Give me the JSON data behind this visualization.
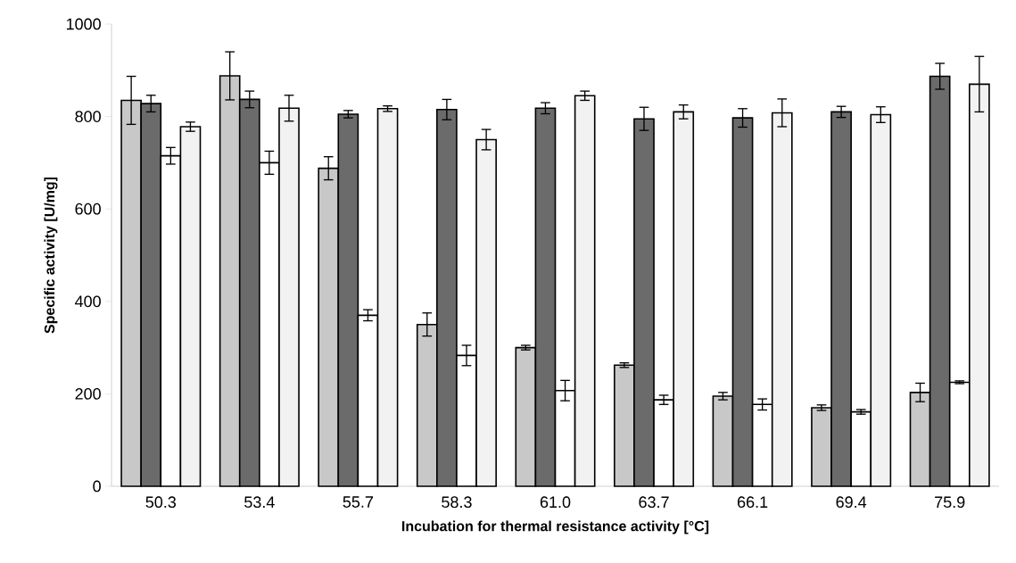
{
  "chart_data": {
    "type": "bar",
    "xlabel": "Incubation for thermal resistance activity [°C]",
    "ylabel": "Specific activity [U/mg]",
    "categories": [
      "50.3",
      "53.4",
      "55.7",
      "58.3",
      "61.0",
      "63.7",
      "66.1",
      "69.4",
      "75.9"
    ],
    "ylim": [
      0,
      1000
    ],
    "yticks": [
      0,
      200,
      400,
      600,
      800,
      1000
    ],
    "grid": false,
    "series": [
      {
        "color": "#c8c8c8",
        "values": [
          835,
          888,
          688,
          350,
          300,
          262,
          195,
          170,
          203
        ],
        "errors": [
          52,
          52,
          25,
          25,
          5,
          5,
          8,
          6,
          20
        ]
      },
      {
        "color": "#6b6b6b",
        "values": [
          828,
          837,
          805,
          815,
          818,
          795,
          797,
          810,
          887
        ],
        "errors": [
          18,
          18,
          8,
          22,
          12,
          25,
          20,
          12,
          28
        ]
      },
      {
        "color": "#ffffff",
        "values": [
          715,
          700,
          370,
          283,
          207,
          187,
          177,
          161,
          225
        ],
        "errors": [
          18,
          25,
          12,
          22,
          22,
          10,
          12,
          5,
          3
        ]
      },
      {
        "color": "#f2f2f2",
        "values": [
          778,
          818,
          817,
          750,
          845,
          810,
          808,
          804,
          870
        ],
        "errors": [
          10,
          28,
          6,
          22,
          10,
          15,
          30,
          17,
          60
        ]
      }
    ]
  }
}
